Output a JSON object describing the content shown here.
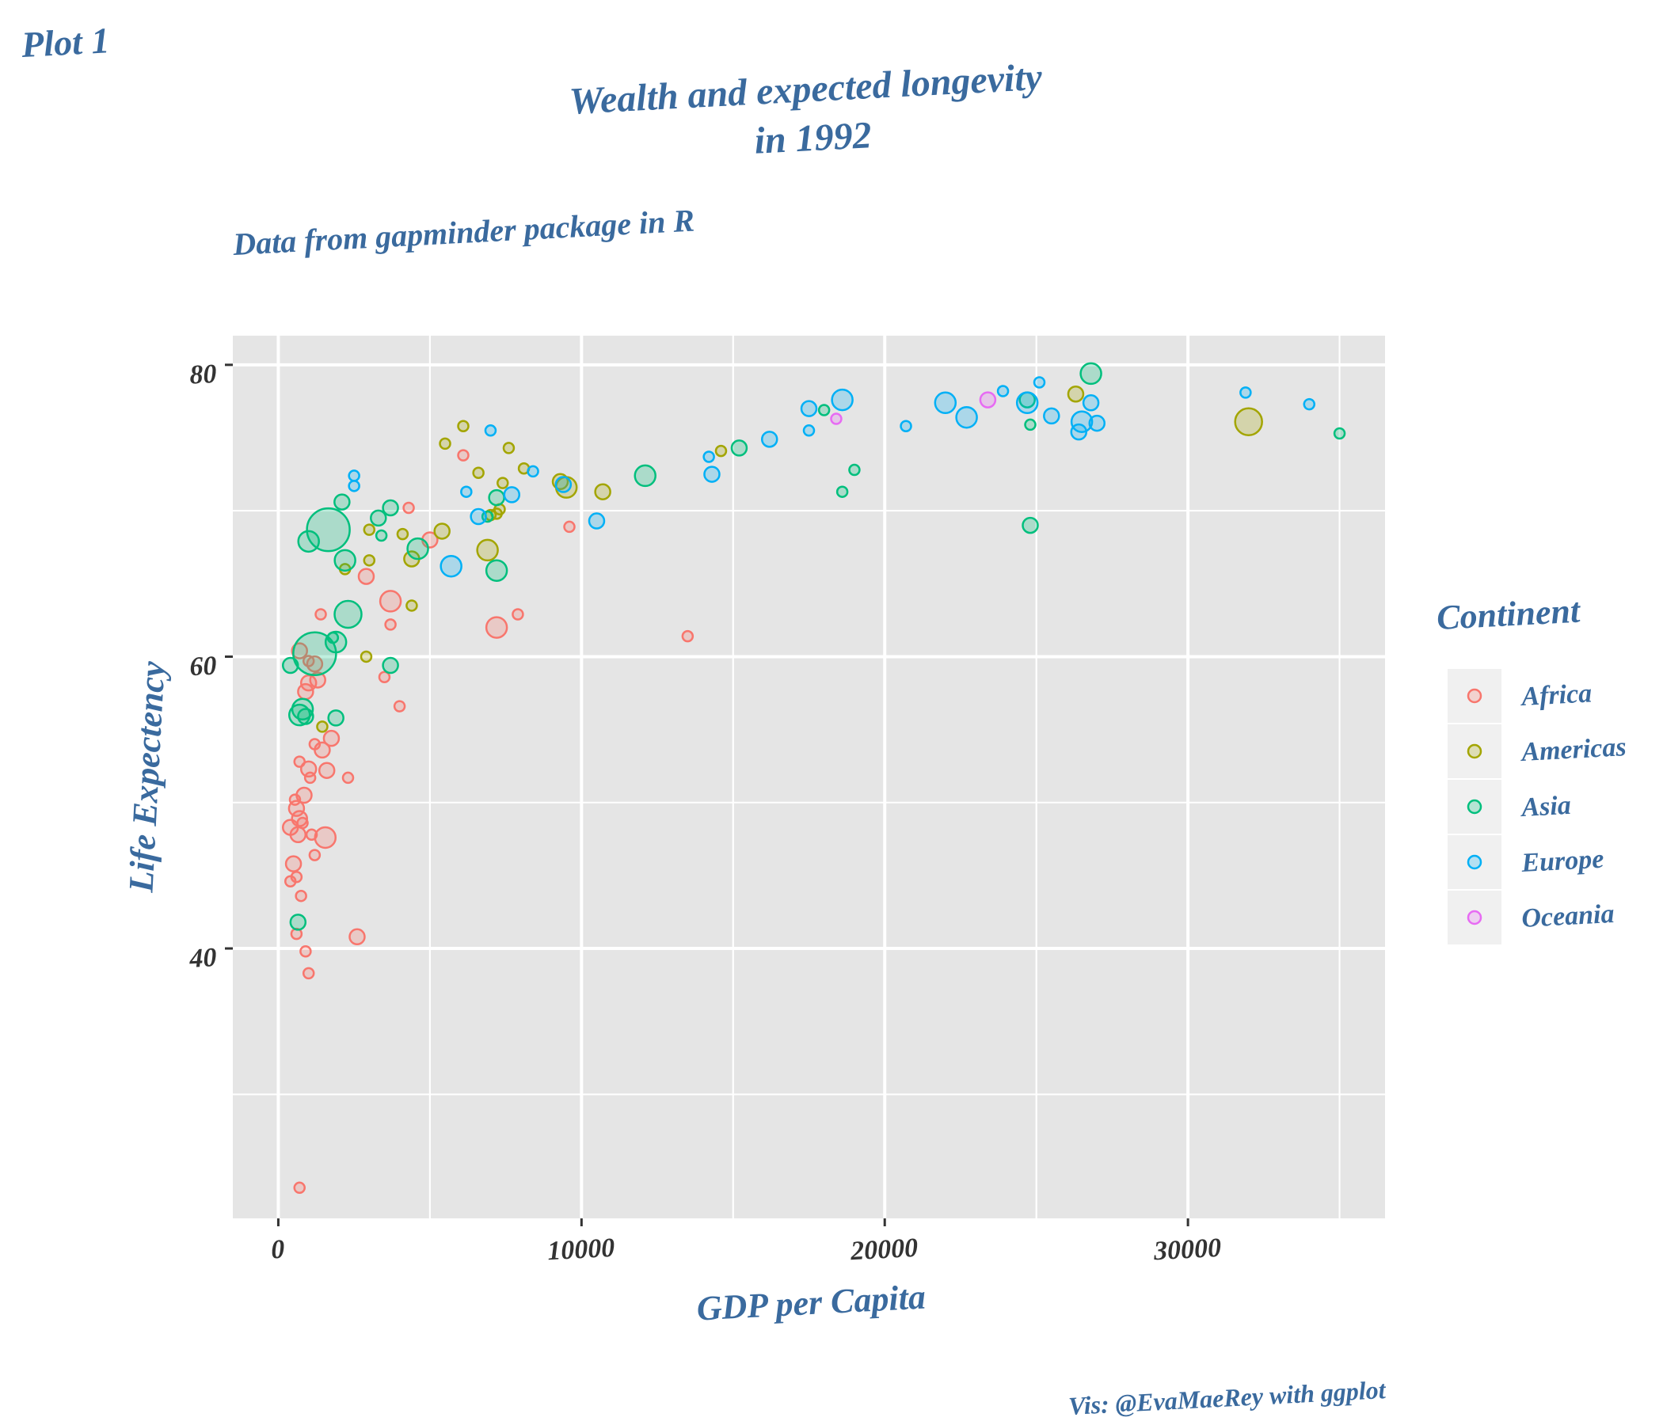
{
  "tag": "Plot 1",
  "caption": "Vis: @EvaMaeRey with ggplot",
  "colors": {
    "text": "#3a6a9e",
    "panel": "#e5e5e5",
    "grid": "#ffffff",
    "legend_key_bg": "#f0f0f0"
  },
  "chart_data": {
    "type": "scatter",
    "title": "Wealth and expected longevity\nin 1992",
    "subtitle": "Data from gapminder package in R",
    "xlabel": "GDP per Capita",
    "ylabel": "Life Expectency",
    "xlim": [
      -1500,
      36500
    ],
    "ylim": [
      21.5,
      82
    ],
    "xticks": [
      0,
      10000,
      20000,
      30000
    ],
    "yticks": [
      40,
      60,
      80
    ],
    "grid": true,
    "legend": {
      "title": "Continent",
      "position": "right",
      "entries": [
        {
          "name": "Africa",
          "color": "#F8766D"
        },
        {
          "name": "Americas",
          "color": "#A3A500"
        },
        {
          "name": "Asia",
          "color": "#00BF7D"
        },
        {
          "name": "Europe",
          "color": "#00B0F6"
        },
        {
          "name": "Oceania",
          "color": "#E76BF3"
        }
      ]
    },
    "series": [
      {
        "name": "Africa",
        "color": "#F8766D",
        "points": [
          {
            "x": 700,
            "y": 23.6,
            "s": 1
          },
          {
            "x": 400,
            "y": 48.3,
            "s": 2
          },
          {
            "x": 500,
            "y": 45.8,
            "s": 2
          },
          {
            "x": 400,
            "y": 44.6,
            "s": 1
          },
          {
            "x": 600,
            "y": 49.6,
            "s": 2
          },
          {
            "x": 550,
            "y": 50.2,
            "s": 1
          },
          {
            "x": 650,
            "y": 47.8,
            "s": 2
          },
          {
            "x": 700,
            "y": 48.9,
            "s": 2
          },
          {
            "x": 800,
            "y": 48.6,
            "s": 1
          },
          {
            "x": 750,
            "y": 43.6,
            "s": 1
          },
          {
            "x": 600,
            "y": 44.9,
            "s": 1
          },
          {
            "x": 600,
            "y": 41.0,
            "s": 1
          },
          {
            "x": 900,
            "y": 39.8,
            "s": 1
          },
          {
            "x": 1000,
            "y": 38.3,
            "s": 1
          },
          {
            "x": 1100,
            "y": 47.8,
            "s": 1
          },
          {
            "x": 1200,
            "y": 46.4,
            "s": 1
          },
          {
            "x": 850,
            "y": 50.5,
            "s": 2
          },
          {
            "x": 1000,
            "y": 52.3,
            "s": 2
          },
          {
            "x": 700,
            "y": 52.8,
            "s": 1
          },
          {
            "x": 1050,
            "y": 51.7,
            "s": 1
          },
          {
            "x": 1200,
            "y": 54.0,
            "s": 1
          },
          {
            "x": 1450,
            "y": 53.6,
            "s": 2
          },
          {
            "x": 1600,
            "y": 52.2,
            "s": 2
          },
          {
            "x": 1750,
            "y": 54.4,
            "s": 2
          },
          {
            "x": 1550,
            "y": 47.6,
            "s": 3
          },
          {
            "x": 2300,
            "y": 51.7,
            "s": 1
          },
          {
            "x": 2600,
            "y": 40.8,
            "s": 2
          },
          {
            "x": 900,
            "y": 57.6,
            "s": 2
          },
          {
            "x": 1000,
            "y": 58.2,
            "s": 2
          },
          {
            "x": 1300,
            "y": 58.4,
            "s": 2
          },
          {
            "x": 1200,
            "y": 59.5,
            "s": 2
          },
          {
            "x": 1000,
            "y": 59.7,
            "s": 1
          },
          {
            "x": 700,
            "y": 60.4,
            "s": 2
          },
          {
            "x": 1400,
            "y": 62.9,
            "s": 1
          },
          {
            "x": 3500,
            "y": 58.6,
            "s": 1
          },
          {
            "x": 4000,
            "y": 56.6,
            "s": 1
          },
          {
            "x": 3700,
            "y": 62.2,
            "s": 1
          },
          {
            "x": 3700,
            "y": 63.8,
            "s": 3
          },
          {
            "x": 2900,
            "y": 65.5,
            "s": 2
          },
          {
            "x": 5000,
            "y": 68.0,
            "s": 2
          },
          {
            "x": 4300,
            "y": 70.2,
            "s": 1
          },
          {
            "x": 6100,
            "y": 73.8,
            "s": 1
          },
          {
            "x": 7200,
            "y": 62.0,
            "s": 3
          },
          {
            "x": 7900,
            "y": 62.9,
            "s": 1
          },
          {
            "x": 9600,
            "y": 68.9,
            "s": 1
          },
          {
            "x": 13500,
            "y": 61.4,
            "s": 1
          }
        ]
      },
      {
        "name": "Americas",
        "color": "#A3A500",
        "points": [
          {
            "x": 1450,
            "y": 55.2,
            "s": 1
          },
          {
            "x": 2900,
            "y": 60.0,
            "s": 1
          },
          {
            "x": 2200,
            "y": 66.0,
            "s": 1
          },
          {
            "x": 3000,
            "y": 66.6,
            "s": 1
          },
          {
            "x": 3000,
            "y": 68.7,
            "s": 1
          },
          {
            "x": 4100,
            "y": 68.4,
            "s": 1
          },
          {
            "x": 4400,
            "y": 66.7,
            "s": 2
          },
          {
            "x": 4400,
            "y": 63.5,
            "s": 1
          },
          {
            "x": 5400,
            "y": 68.6,
            "s": 2
          },
          {
            "x": 5500,
            "y": 74.6,
            "s": 1
          },
          {
            "x": 6100,
            "y": 75.8,
            "s": 1
          },
          {
            "x": 6600,
            "y": 72.6,
            "s": 1
          },
          {
            "x": 6900,
            "y": 67.3,
            "s": 3
          },
          {
            "x": 7000,
            "y": 69.7,
            "s": 1
          },
          {
            "x": 7200,
            "y": 69.8,
            "s": 1
          },
          {
            "x": 7300,
            "y": 70.1,
            "s": 1
          },
          {
            "x": 7400,
            "y": 71.9,
            "s": 1
          },
          {
            "x": 7600,
            "y": 74.3,
            "s": 1
          },
          {
            "x": 8100,
            "y": 72.9,
            "s": 1
          },
          {
            "x": 9300,
            "y": 72.0,
            "s": 2
          },
          {
            "x": 9500,
            "y": 71.6,
            "s": 3
          },
          {
            "x": 10700,
            "y": 71.3,
            "s": 2
          },
          {
            "x": 14600,
            "y": 74.1,
            "s": 1
          },
          {
            "x": 26300,
            "y": 78.0,
            "s": 2
          },
          {
            "x": 32000,
            "y": 76.1,
            "s": 4
          }
        ]
      },
      {
        "name": "Asia",
        "color": "#00BF7D",
        "points": [
          {
            "x": 400,
            "y": 59.4,
            "s": 2
          },
          {
            "x": 650,
            "y": 41.8,
            "s": 2
          },
          {
            "x": 700,
            "y": 56.0,
            "s": 3
          },
          {
            "x": 900,
            "y": 55.9,
            "s": 2
          },
          {
            "x": 800,
            "y": 56.4,
            "s": 3
          },
          {
            "x": 1000,
            "y": 67.9,
            "s": 3
          },
          {
            "x": 1200,
            "y": 60.2,
            "s": 5
          },
          {
            "x": 1650,
            "y": 68.7,
            "s": 5
          },
          {
            "x": 1900,
            "y": 61.0,
            "s": 3
          },
          {
            "x": 1900,
            "y": 55.8,
            "s": 2
          },
          {
            "x": 1800,
            "y": 61.3,
            "s": 1
          },
          {
            "x": 2100,
            "y": 70.6,
            "s": 2
          },
          {
            "x": 2200,
            "y": 66.6,
            "s": 3
          },
          {
            "x": 2300,
            "y": 62.9,
            "s": 4
          },
          {
            "x": 3300,
            "y": 69.5,
            "s": 2
          },
          {
            "x": 3400,
            "y": 68.3,
            "s": 1
          },
          {
            "x": 3700,
            "y": 70.2,
            "s": 2
          },
          {
            "x": 3700,
            "y": 59.4,
            "s": 2
          },
          {
            "x": 4600,
            "y": 67.4,
            "s": 3
          },
          {
            "x": 6900,
            "y": 69.6,
            "s": 1
          },
          {
            "x": 7200,
            "y": 70.9,
            "s": 2
          },
          {
            "x": 7200,
            "y": 65.9,
            "s": 3
          },
          {
            "x": 12100,
            "y": 72.4,
            "s": 3
          },
          {
            "x": 15200,
            "y": 74.3,
            "s": 2
          },
          {
            "x": 18000,
            "y": 76.9,
            "s": 1
          },
          {
            "x": 18600,
            "y": 71.3,
            "s": 1
          },
          {
            "x": 19000,
            "y": 72.8,
            "s": 1
          },
          {
            "x": 24700,
            "y": 77.6,
            "s": 2
          },
          {
            "x": 24800,
            "y": 69.0,
            "s": 2
          },
          {
            "x": 24800,
            "y": 75.9,
            "s": 1
          },
          {
            "x": 26800,
            "y": 79.4,
            "s": 3
          },
          {
            "x": 35000,
            "y": 75.3,
            "s": 1
          }
        ]
      },
      {
        "name": "Europe",
        "color": "#00B0F6",
        "points": [
          {
            "x": 2500,
            "y": 71.7,
            "s": 1
          },
          {
            "x": 2500,
            "y": 72.4,
            "s": 1
          },
          {
            "x": 5700,
            "y": 66.2,
            "s": 3
          },
          {
            "x": 6200,
            "y": 71.3,
            "s": 1
          },
          {
            "x": 6600,
            "y": 69.6,
            "s": 2
          },
          {
            "x": 7000,
            "y": 75.5,
            "s": 1
          },
          {
            "x": 7700,
            "y": 71.1,
            "s": 2
          },
          {
            "x": 8400,
            "y": 72.7,
            "s": 1
          },
          {
            "x": 9400,
            "y": 71.8,
            "s": 2
          },
          {
            "x": 10500,
            "y": 69.3,
            "s": 2
          },
          {
            "x": 14200,
            "y": 73.7,
            "s": 1
          },
          {
            "x": 14300,
            "y": 72.5,
            "s": 2
          },
          {
            "x": 16200,
            "y": 74.9,
            "s": 2
          },
          {
            "x": 17500,
            "y": 77.0,
            "s": 2
          },
          {
            "x": 17500,
            "y": 75.5,
            "s": 1
          },
          {
            "x": 18600,
            "y": 77.6,
            "s": 3
          },
          {
            "x": 20700,
            "y": 75.8,
            "s": 1
          },
          {
            "x": 22000,
            "y": 77.4,
            "s": 3
          },
          {
            "x": 22700,
            "y": 76.4,
            "s": 3
          },
          {
            "x": 23900,
            "y": 78.2,
            "s": 1
          },
          {
            "x": 24700,
            "y": 77.4,
            "s": 3
          },
          {
            "x": 25100,
            "y": 78.8,
            "s": 1
          },
          {
            "x": 25500,
            "y": 76.5,
            "s": 2
          },
          {
            "x": 26400,
            "y": 75.4,
            "s": 2
          },
          {
            "x": 26500,
            "y": 76.1,
            "s": 3
          },
          {
            "x": 26800,
            "y": 77.4,
            "s": 2
          },
          {
            "x": 27000,
            "y": 76.0,
            "s": 2
          },
          {
            "x": 31900,
            "y": 78.1,
            "s": 1
          },
          {
            "x": 34000,
            "y": 77.3,
            "s": 1
          }
        ]
      },
      {
        "name": "Oceania",
        "color": "#E76BF3",
        "points": [
          {
            "x": 18400,
            "y": 76.3,
            "s": 1
          },
          {
            "x": 23400,
            "y": 77.6,
            "s": 2
          }
        ]
      }
    ]
  }
}
